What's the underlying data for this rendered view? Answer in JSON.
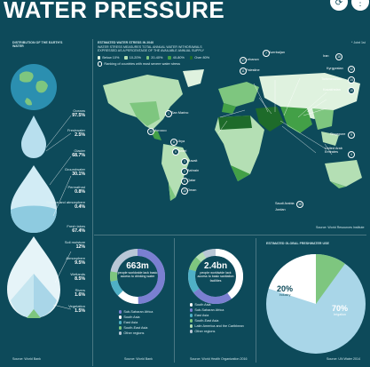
{
  "header": {
    "title": "WATER PRESSURE"
  },
  "distribution": {
    "heading": "DISTRIBUTION OF THE EARTH'S WATER",
    "items": [
      {
        "label": "Oceans",
        "value": "97.5%"
      },
      {
        "label": "Freshwater",
        "value": "2.5%"
      },
      {
        "label": "Glacier",
        "value": "68.7%"
      },
      {
        "label": "Groundwater",
        "value": "30.1%"
      },
      {
        "label": "Permafrost",
        "value": "0.8%"
      },
      {
        "label": "Surface and atmosphere",
        "value": "0.4%"
      },
      {
        "label": "Fresh lakes",
        "value": "67.4%"
      },
      {
        "label": "Soil moisture",
        "value": "12%"
      },
      {
        "label": "Atmosphere",
        "value": "9.5%"
      },
      {
        "label": "Wetlands",
        "value": "8.5%"
      },
      {
        "label": "Rivers",
        "value": "1.6%"
      },
      {
        "label": "Vegetation",
        "value": "1.5%"
      }
    ],
    "source": "Source: World Bank"
  },
  "map": {
    "heading": "ESTIMATED WATER STRESS IN 2040",
    "subheading": "WATER STRESS MEASURES TOTAL ANNUAL WATER WITHDRAWALS EXPRESSED AS A PERCENTAGE OF THE AVAILABLE ANNUAL SUPPLY",
    "legend": [
      {
        "label": "Below 10%",
        "color": "#dff2df"
      },
      {
        "label": "10-20%",
        "color": "#b4dfb4"
      },
      {
        "label": "20-40%",
        "color": "#7ec67f"
      },
      {
        "label": "40-80%",
        "color": "#43a047"
      },
      {
        "label": "Over 80%",
        "color": "#1e6b2a"
      }
    ],
    "legend_note": "Ranking of countries with most severe water stress",
    "corner_note": "* Joint 1st",
    "labels": [
      {
        "num": "17",
        "name": "Lebanon"
      },
      {
        "num": "7",
        "name": "Azerbaijan"
      },
      {
        "num": "11",
        "name": "Palestine"
      },
      {
        "num": "16",
        "name": "Iran"
      },
      {
        "num": "12",
        "name": "Kyrgyzstan"
      },
      {
        "num": "14",
        "name": "Turkmenistan"
      },
      {
        "num": "15",
        "name": "Kazakhstan"
      },
      {
        "num": "1",
        "name": "San Marino"
      },
      {
        "num": "9",
        "name": "Singapore"
      },
      {
        "num": "13",
        "name": "Morocco"
      },
      {
        "num": "8",
        "name": "Libya"
      },
      {
        "num": "6",
        "name": "Israel"
      },
      {
        "num": "3",
        "name": "Kuwait"
      },
      {
        "num": "2",
        "name": "Bahrain"
      },
      {
        "num": "5",
        "name": "Qatar"
      },
      {
        "num": "10",
        "name": "Oman"
      },
      {
        "num": "18",
        "name": "Saudi Arabia"
      },
      {
        "num": "4",
        "name": "United Arab Emirates"
      },
      {
        "num": "",
        "name": "Jordan"
      }
    ],
    "source": "Source: World Resources Institute"
  },
  "donut1": {
    "value": "663m",
    "caption": "people worldwide lack basic access to drinking water",
    "legend": [
      {
        "label": "Sub-Saharan Africa",
        "color": "#7a7fd1"
      },
      {
        "label": "South Asia",
        "color": "#ffffff"
      },
      {
        "label": "East Asia",
        "color": "#4fb0c6"
      },
      {
        "label": "South-East Asia",
        "color": "#7ec67f"
      },
      {
        "label": "Other regions",
        "color": "#b9c7d6"
      }
    ],
    "source": "Source: World Bank"
  },
  "donut2": {
    "value": "2.4bn",
    "caption": "people worldwide lack access to basic sanitation facilities",
    "legend": [
      {
        "label": "South Asia",
        "color": "#ffffff"
      },
      {
        "label": "Sub-Saharan Africa",
        "color": "#7a7fd1"
      },
      {
        "label": "East Asia",
        "color": "#4fb0c6"
      },
      {
        "label": "South-East Asia",
        "color": "#7ec67f"
      },
      {
        "label": "Latin America and the Caribbean",
        "color": "#b4dfb4"
      },
      {
        "label": "Other regions",
        "color": "#b9c7d6"
      }
    ],
    "source": "Source: World Health Organization 2016"
  },
  "waterUse": {
    "heading": "ESTIMATED GLOBAL FRESHWATER USE",
    "slices": [
      {
        "label": "Irrigation",
        "value": "70%",
        "color": "#a9d6e8"
      },
      {
        "label": "Industry",
        "value": "20%",
        "color": "#ffffff"
      },
      {
        "label": "Domestic",
        "value": "10%",
        "color": "#7ec67f"
      }
    ],
    "source": "Source: UN Water 2014"
  },
  "colors": {
    "background": "#0d4a5a",
    "accent": "#4fb0c6"
  }
}
